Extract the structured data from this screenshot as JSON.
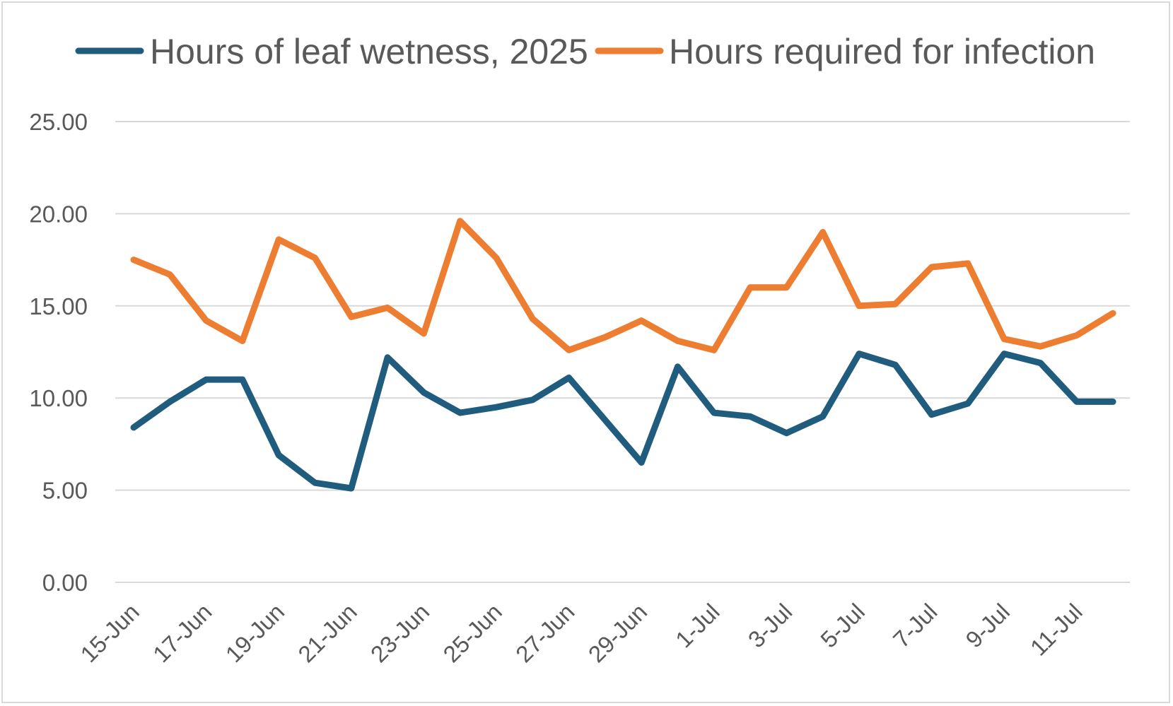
{
  "chart_data": {
    "type": "line",
    "title": "",
    "xlabel": "",
    "ylabel": "",
    "ylim": [
      0,
      25
    ],
    "y_ticks": [
      0,
      5,
      10,
      15,
      20,
      25
    ],
    "y_tick_labels": [
      "0.00",
      "5.00",
      "10.00",
      "15.00",
      "20.00",
      "25.00"
    ],
    "grid": true,
    "legend": "top",
    "categories": [
      "15-Jun",
      "16-Jun",
      "17-Jun",
      "18-Jun",
      "19-Jun",
      "20-Jun",
      "21-Jun",
      "22-Jun",
      "23-Jun",
      "24-Jun",
      "25-Jun",
      "26-Jun",
      "27-Jun",
      "28-Jun",
      "29-Jun",
      "30-Jun",
      "1-Jul",
      "2-Jul",
      "3-Jul",
      "4-Jul",
      "5-Jul",
      "6-Jul",
      "7-Jul",
      "8-Jul",
      "9-Jul",
      "10-Jul",
      "11-Jul",
      "12-Jul"
    ],
    "x_tick_labels": [
      "15-Jun",
      "17-Jun",
      "19-Jun",
      "21-Jun",
      "23-Jun",
      "25-Jun",
      "27-Jun",
      "29-Jun",
      "1-Jul",
      "3-Jul",
      "5-Jul",
      "7-Jul",
      "9-Jul",
      "11-Jul"
    ],
    "series": [
      {
        "name": "Hours of leaf wetness, 2025",
        "color": "#1f5c7e",
        "values": [
          8.4,
          9.8,
          11.0,
          11.0,
          6.9,
          5.4,
          5.1,
          12.2,
          10.3,
          9.2,
          9.5,
          9.9,
          11.1,
          8.8,
          6.5,
          11.7,
          9.2,
          9.0,
          8.1,
          9.0,
          12.4,
          11.8,
          9.1,
          9.7,
          12.4,
          11.9,
          9.8,
          9.8
        ]
      },
      {
        "name": "Hours required for infection",
        "color": "#ed7d31",
        "values": [
          17.5,
          16.7,
          14.2,
          13.1,
          18.6,
          17.6,
          14.4,
          14.9,
          13.5,
          19.6,
          17.6,
          14.3,
          12.6,
          13.3,
          14.2,
          13.1,
          12.6,
          16.0,
          16.0,
          19.0,
          15.0,
          15.1,
          17.1,
          17.3,
          13.2,
          12.8,
          13.4,
          14.6
        ]
      }
    ]
  }
}
